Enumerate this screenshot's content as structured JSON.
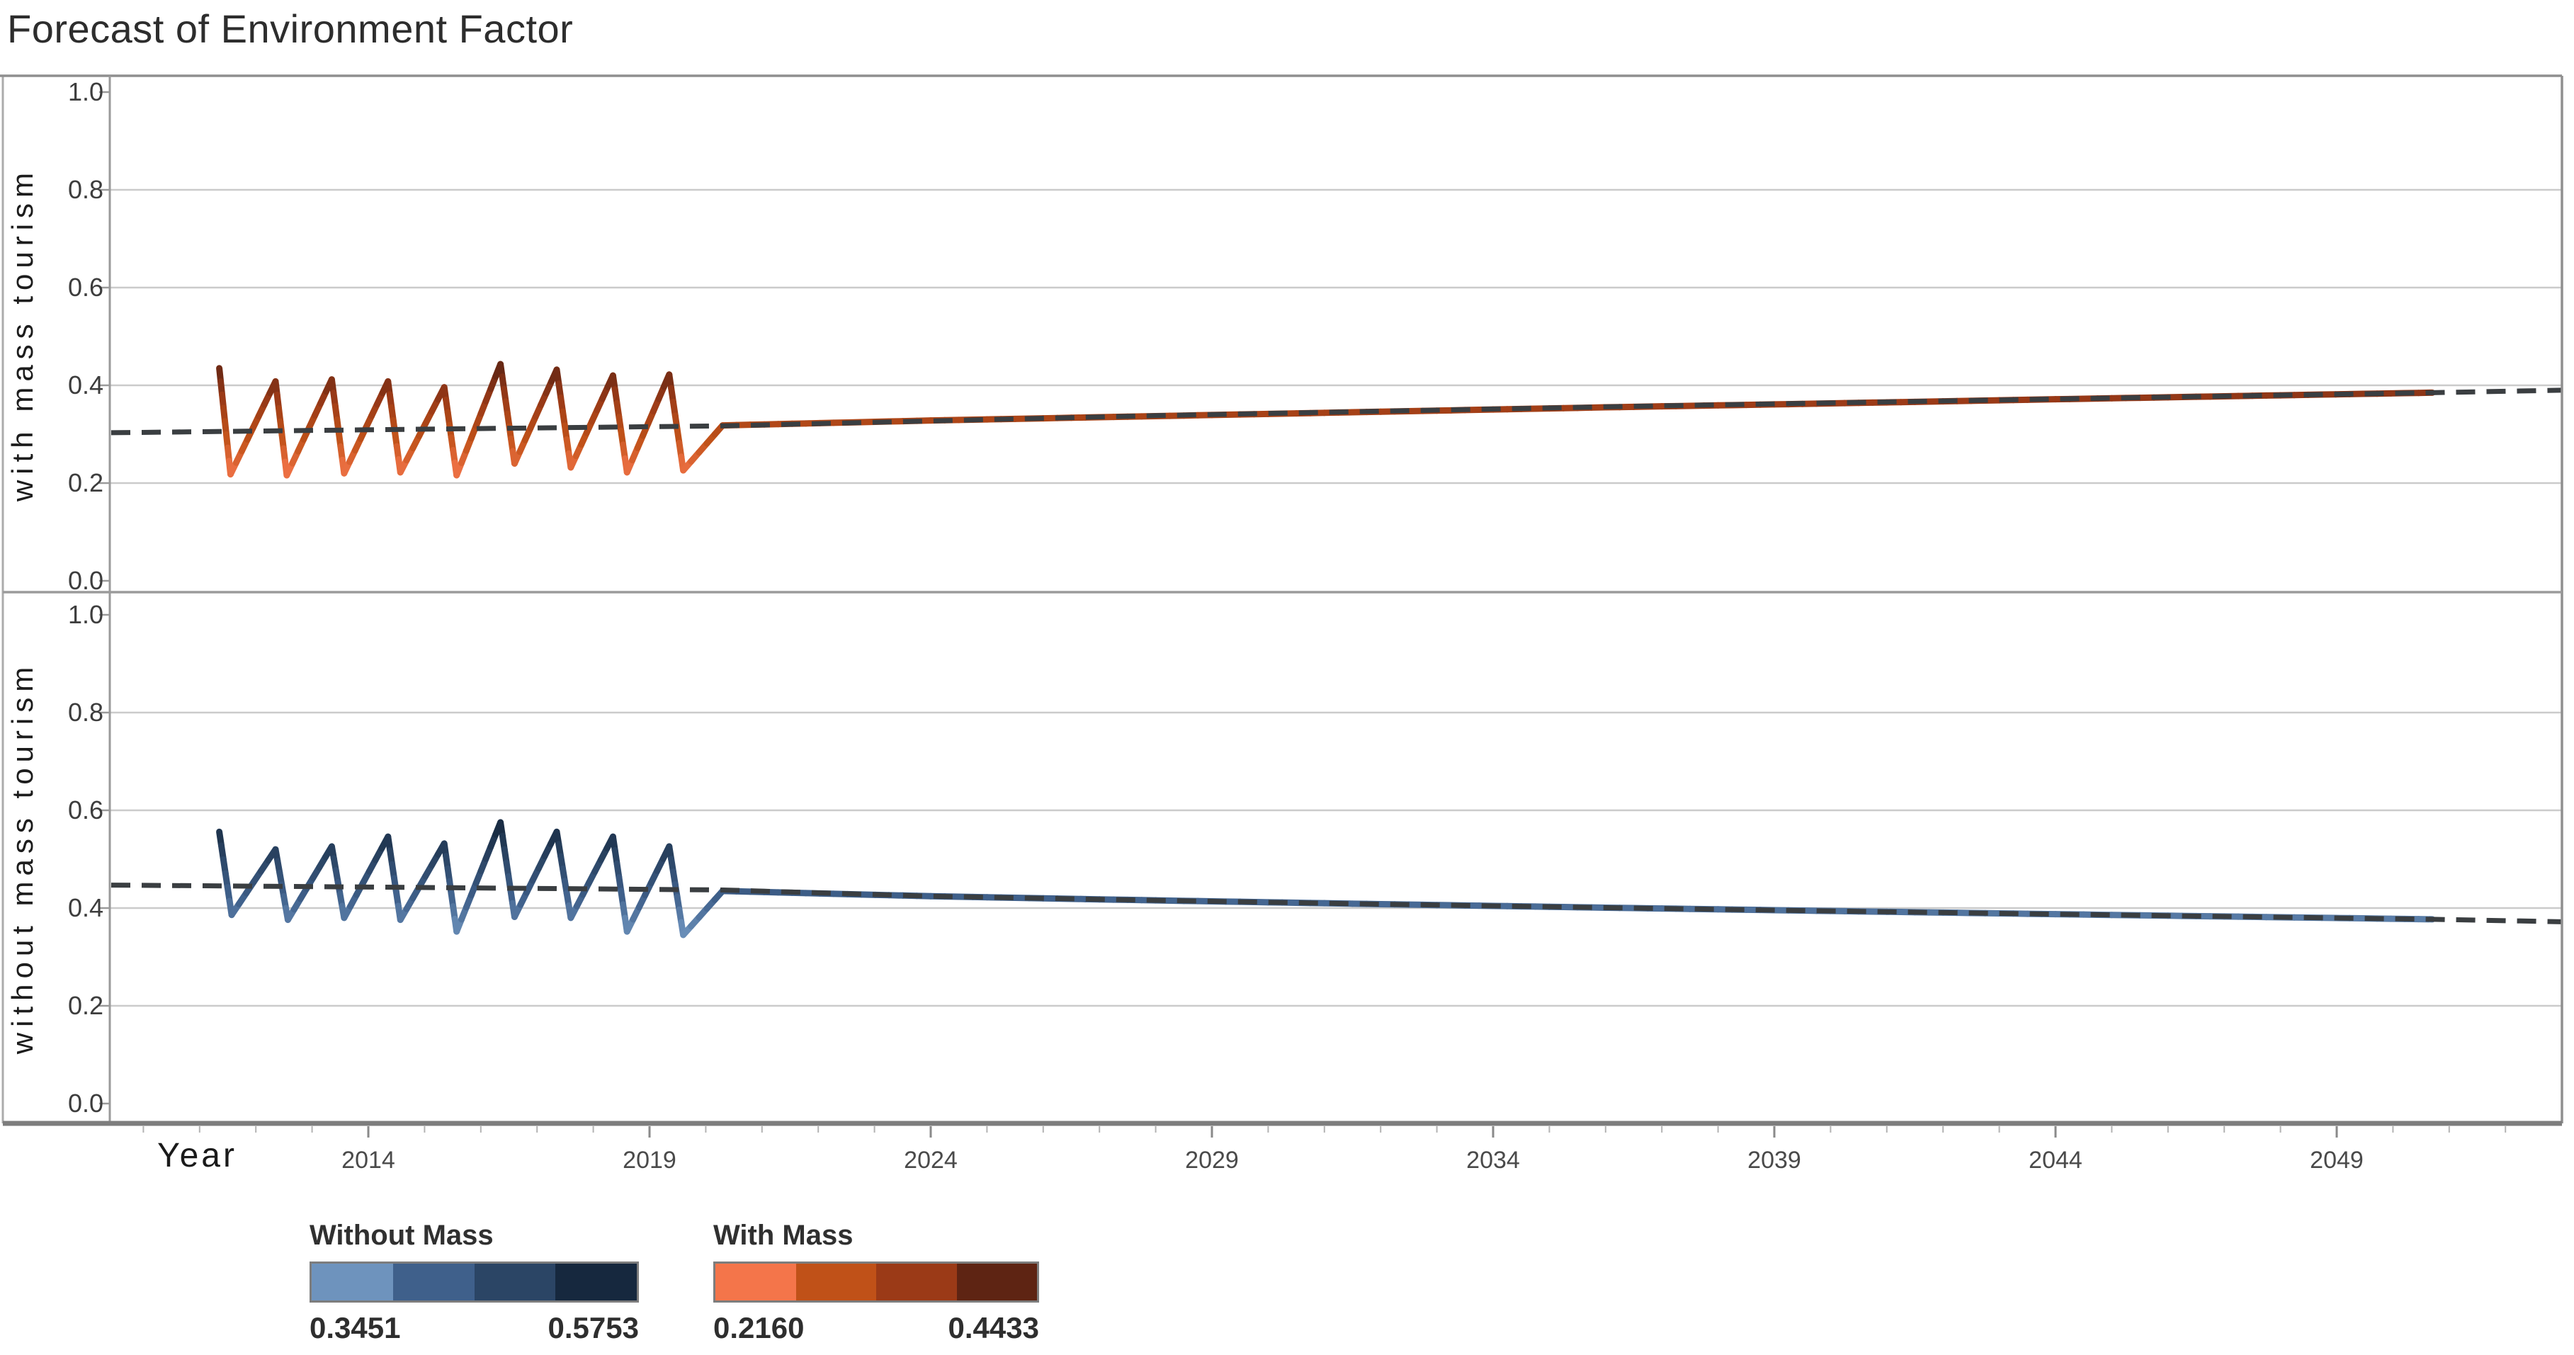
{
  "title": "Forecast of Environment Factor",
  "x_axis": {
    "label": "Year",
    "tick_years": [
      2014,
      2019,
      2024,
      2029,
      2034,
      2039,
      2044,
      2049
    ],
    "tick_labels": [
      "2014",
      "2019",
      "2024",
      "2029",
      "2034",
      "2039",
      "2044",
      "2049"
    ],
    "minor_tick_range": [
      2010,
      2052
    ]
  },
  "panels": [
    {
      "axis_label": "with mass tourism",
      "y_tick_values": [
        1.0,
        0.8,
        0.6,
        0.4,
        0.2,
        0.0
      ],
      "y_tick_labels": [
        "1.0",
        "0.8",
        "0.6",
        "0.4",
        "0.2",
        "0.0"
      ]
    },
    {
      "axis_label": "without mass tourism",
      "y_tick_values": [
        1.0,
        0.8,
        0.6,
        0.4,
        0.2,
        0.0
      ],
      "y_tick_labels": [
        "1.0",
        "0.8",
        "0.6",
        "0.4",
        "0.2",
        "0.0"
      ]
    }
  ],
  "legend": [
    {
      "title": "Without Mass",
      "min_label": "0.3451",
      "max_label": "0.5753",
      "colors": [
        "#6E93BD",
        "#3F608B",
        "#2B4565",
        "#16283E"
      ]
    },
    {
      "title": "With Mass",
      "min_label": "0.2160",
      "max_label": "0.4433",
      "colors": [
        "#F4754A",
        "#C05118",
        "#9B3A17",
        "#5E2413"
      ]
    }
  ],
  "trend_line_color": "#3A3E41",
  "grid_color": "#cbcbcb",
  "chart_data": [
    {
      "type": "line",
      "title": "with mass tourism",
      "xlabel": "Year",
      "ylim": [
        0,
        1
      ],
      "xlim": [
        2009.4,
        2053
      ],
      "x_ticks": [
        2014,
        2019,
        2024,
        2029,
        2034,
        2039,
        2044,
        2049
      ],
      "y_ticks": [
        0,
        0.2,
        0.4,
        0.6,
        0.8,
        1.0
      ],
      "grid": true,
      "color_scale": {
        "min": 0.216,
        "max": 0.4433,
        "palette": [
          "#F4754A",
          "#C05118",
          "#9B3A17",
          "#5E2413"
        ]
      },
      "series": [
        {
          "name": "observed seasonal",
          "style": "color-mapped",
          "points": [
            [
              2011.35,
              0.435
            ],
            [
              2011.55,
              0.218
            ],
            [
              2012.35,
              0.408
            ],
            [
              2012.55,
              0.216
            ],
            [
              2013.35,
              0.412
            ],
            [
              2013.57,
              0.22
            ],
            [
              2014.35,
              0.408
            ],
            [
              2014.57,
              0.222
            ],
            [
              2015.35,
              0.396
            ],
            [
              2015.57,
              0.216
            ],
            [
              2016.35,
              0.4433
            ],
            [
              2016.6,
              0.24
            ],
            [
              2017.35,
              0.432
            ],
            [
              2017.6,
              0.232
            ],
            [
              2018.35,
              0.42
            ],
            [
              2018.6,
              0.222
            ],
            [
              2019.35,
              0.422
            ],
            [
              2019.6,
              0.226
            ],
            [
              2020.3,
              0.318
            ]
          ]
        },
        {
          "name": "forecast",
          "style": "color-mapped",
          "points": [
            [
              2020.3,
              0.318
            ],
            [
              2024,
              0.328
            ],
            [
              2028,
              0.337
            ],
            [
              2032,
              0.346
            ],
            [
              2036,
              0.355
            ],
            [
              2040,
              0.363
            ],
            [
              2044,
              0.3715
            ],
            [
              2048,
              0.3796
            ],
            [
              2050.7,
              0.385
            ]
          ]
        },
        {
          "name": "trend",
          "style": "dashed",
          "points": [
            [
              2009.42,
              0.303
            ],
            [
              2014,
              0.309
            ],
            [
              2020.3,
              0.317
            ],
            [
              2028,
              0.338
            ],
            [
              2036,
              0.356
            ],
            [
              2044,
              0.372
            ],
            [
              2050.7,
              0.385
            ],
            [
              2053,
              0.39
            ]
          ]
        }
      ]
    },
    {
      "type": "line",
      "title": "without mass tourism",
      "xlabel": "Year",
      "ylim": [
        0,
        1
      ],
      "xlim": [
        2009.4,
        2053
      ],
      "x_ticks": [
        2014,
        2019,
        2024,
        2029,
        2034,
        2039,
        2044,
        2049
      ],
      "y_ticks": [
        0,
        0.2,
        0.4,
        0.6,
        0.8,
        1.0
      ],
      "grid": true,
      "color_scale": {
        "min": 0.3451,
        "max": 0.5753,
        "palette": [
          "#6E93BD",
          "#3F608B",
          "#2B4565",
          "#16283E"
        ]
      },
      "series": [
        {
          "name": "observed seasonal",
          "style": "color-mapped",
          "points": [
            [
              2011.35,
              0.556
            ],
            [
              2011.57,
              0.386
            ],
            [
              2012.35,
              0.52
            ],
            [
              2012.57,
              0.376
            ],
            [
              2013.35,
              0.526
            ],
            [
              2013.57,
              0.38
            ],
            [
              2014.35,
              0.546
            ],
            [
              2014.57,
              0.376
            ],
            [
              2015.35,
              0.532
            ],
            [
              2015.57,
              0.352
            ],
            [
              2016.35,
              0.5753
            ],
            [
              2016.6,
              0.382
            ],
            [
              2017.35,
              0.556
            ],
            [
              2017.6,
              0.38
            ],
            [
              2018.35,
              0.546
            ],
            [
              2018.6,
              0.352
            ],
            [
              2019.35,
              0.526
            ],
            [
              2019.6,
              0.3451
            ],
            [
              2020.3,
              0.435
            ]
          ]
        },
        {
          "name": "forecast",
          "style": "color-mapped",
          "points": [
            [
              2020.3,
              0.435
            ],
            [
              2024,
              0.4242
            ],
            [
              2028,
              0.4157
            ],
            [
              2032,
              0.408
            ],
            [
              2036,
              0.4008
            ],
            [
              2040,
              0.394
            ],
            [
              2044,
              0.3875
            ],
            [
              2048,
              0.3812
            ],
            [
              2050.7,
              0.377
            ]
          ]
        },
        {
          "name": "trend",
          "style": "dashed",
          "points": [
            [
              2009.42,
              0.447
            ],
            [
              2014,
              0.443
            ],
            [
              2020.3,
              0.437
            ],
            [
              2024,
              0.4242
            ],
            [
              2028,
              0.4157
            ],
            [
              2032,
              0.408
            ],
            [
              2036,
              0.4008
            ],
            [
              2040,
              0.394
            ],
            [
              2044,
              0.3875
            ],
            [
              2048,
              0.3812
            ],
            [
              2050.7,
              0.377
            ],
            [
              2053,
              0.372
            ]
          ]
        }
      ]
    }
  ]
}
